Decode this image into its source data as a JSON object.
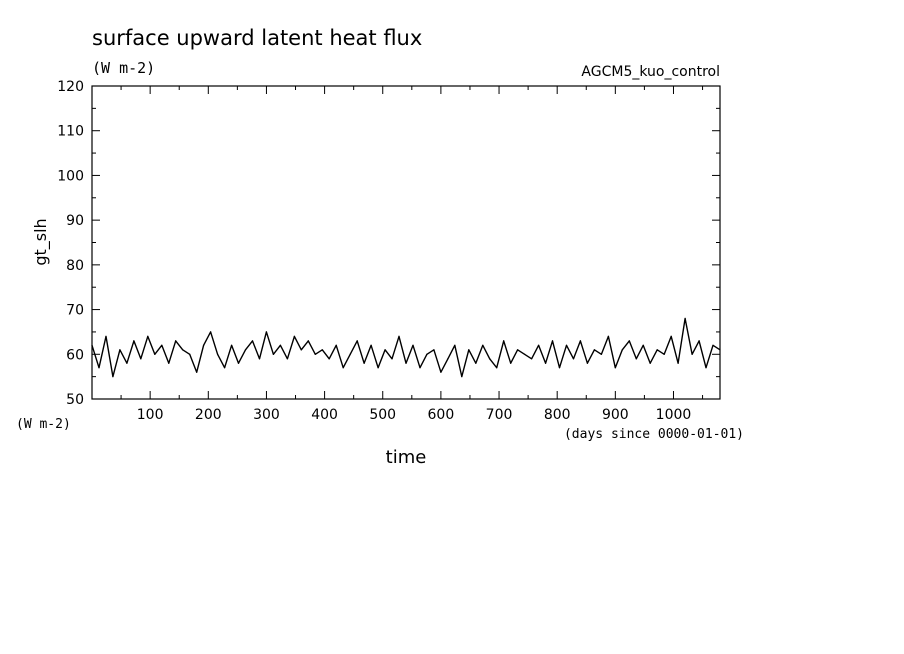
{
  "chart_data": {
    "type": "line",
    "title": "surface upward latent heat flux",
    "subtitle": "(W m-2)",
    "experiment": "AGCM5_kuo_control",
    "xlabel": "time",
    "x_unit": "(days since 0000-01-01)",
    "ylabel": "gt_slh",
    "y_unit": "(W m-2)",
    "xlim": [
      0,
      1080
    ],
    "ylim": [
      50,
      120
    ],
    "xticks": [
      100,
      200,
      300,
      400,
      500,
      600,
      700,
      800,
      900,
      1000
    ],
    "yticks": [
      50,
      60,
      70,
      80,
      90,
      100,
      110,
      120
    ],
    "grid": false,
    "legend": "none",
    "line_color": "#000000",
    "series": [
      {
        "x": [
          0,
          12,
          24,
          36,
          48,
          60,
          72,
          84,
          96,
          108,
          120,
          132,
          144,
          156,
          168,
          180,
          192,
          204,
          216,
          228,
          240,
          252,
          264,
          276,
          288,
          300,
          312,
          324,
          336,
          348,
          360,
          372,
          384,
          396,
          408,
          420,
          432,
          444,
          456,
          468,
          480,
          492,
          504,
          516,
          528,
          540,
          552,
          564,
          576,
          588,
          600,
          612,
          624,
          636,
          648,
          660,
          672,
          684,
          696,
          708,
          720,
          732,
          744,
          756,
          768,
          780,
          792,
          804,
          816,
          828,
          840,
          852,
          864,
          876,
          888,
          900,
          912,
          924,
          936,
          948,
          960,
          972,
          984,
          996,
          1008,
          1020,
          1032,
          1044,
          1056,
          1068,
          1080
        ],
        "y": [
          62,
          57,
          64,
          55,
          61,
          58,
          63,
          59,
          64,
          60,
          62,
          58,
          63,
          61,
          60,
          56,
          62,
          65,
          60,
          57,
          62,
          58,
          61,
          63,
          59,
          65,
          60,
          62,
          59,
          64,
          61,
          63,
          60,
          61,
          59,
          62,
          57,
          60,
          63,
          58,
          62,
          57,
          61,
          59,
          64,
          58,
          62,
          57,
          60,
          61,
          56,
          59,
          62,
          55,
          61,
          58,
          62,
          59,
          57,
          63,
          58,
          61,
          60,
          59,
          62,
          58,
          63,
          57,
          62,
          59,
          63,
          58,
          61,
          60,
          64,
          57,
          61,
          63,
          59,
          62,
          58,
          61,
          60,
          64,
          58,
          68,
          60,
          63,
          57,
          62,
          61
        ]
      }
    ]
  }
}
